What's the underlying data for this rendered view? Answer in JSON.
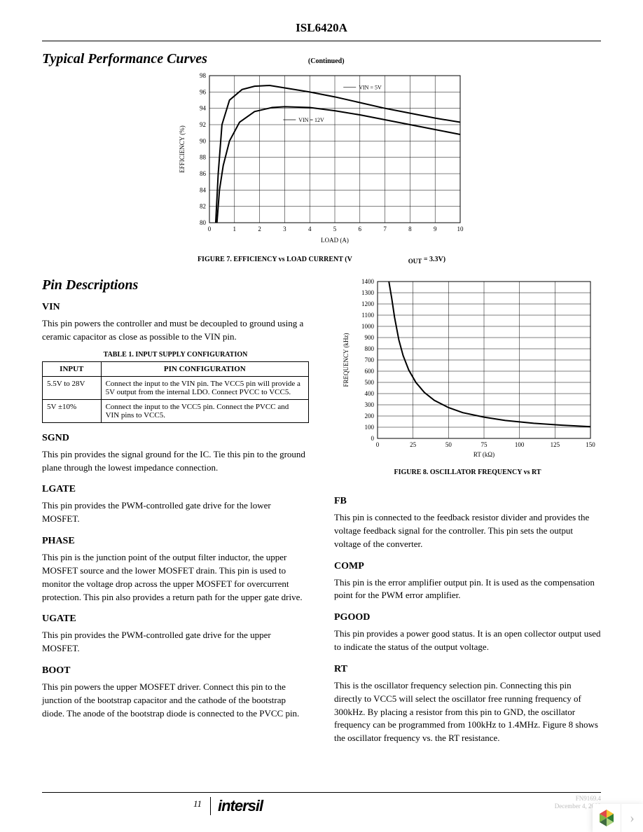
{
  "header": {
    "part": "ISL6420A"
  },
  "section_perf": {
    "title": "Typical Performance Curves",
    "continued": "(Continued)"
  },
  "fig7": {
    "caption_pre": "FIGURE 7. EFFICIENCY vs LOAD CURRENT (V",
    "caption_sub": "OUT",
    "caption_post": " = 3.3V)",
    "type": "line",
    "x_label": "LOAD (A)",
    "y_label": "EFFICIENCY (%)",
    "xlim": [
      0,
      10
    ],
    "ylim": [
      80,
      98
    ],
    "xticks": [
      0,
      1,
      2,
      3,
      4,
      5,
      6,
      7,
      8,
      9,
      10
    ],
    "yticks": [
      80,
      82,
      84,
      86,
      88,
      90,
      92,
      94,
      96,
      98
    ],
    "grid_color": "#000000",
    "background_color": "#ffffff",
    "line_width": 2,
    "series": [
      {
        "name": "VIN = 5V",
        "label": "VIN = 5V",
        "label_xy": [
          5.9,
          96.6
        ],
        "data": [
          [
            0.25,
            80
          ],
          [
            0.35,
            86
          ],
          [
            0.5,
            92
          ],
          [
            0.8,
            95
          ],
          [
            1.3,
            96.3
          ],
          [
            1.8,
            96.7
          ],
          [
            2.4,
            96.8
          ],
          [
            3.0,
            96.5
          ],
          [
            4.0,
            96.0
          ],
          [
            5.0,
            95.4
          ],
          [
            6.0,
            94.7
          ],
          [
            7.0,
            94.0
          ],
          [
            8.0,
            93.4
          ],
          [
            9.0,
            92.8
          ],
          [
            10.0,
            92.3
          ]
        ]
      },
      {
        "name": "VIN = 12V",
        "label": "VIN = 12V",
        "label_xy": [
          3.5,
          92.6
        ],
        "data": [
          [
            0.3,
            80
          ],
          [
            0.4,
            84
          ],
          [
            0.55,
            87
          ],
          [
            0.8,
            90
          ],
          [
            1.2,
            92.3
          ],
          [
            1.8,
            93.6
          ],
          [
            2.5,
            94.1
          ],
          [
            3.0,
            94.2
          ],
          [
            4.0,
            94.1
          ],
          [
            5.0,
            93.7
          ],
          [
            6.0,
            93.2
          ],
          [
            7.0,
            92.6
          ],
          [
            8.0,
            92.0
          ],
          [
            9.0,
            91.4
          ],
          [
            10.0,
            90.8
          ]
        ]
      }
    ]
  },
  "pin_title": "Pin Descriptions",
  "pins_left": [
    {
      "name": "VIN",
      "body": "This pin powers the controller and must be decoupled to ground using a ceramic capacitor as close as possible to the VIN pin."
    },
    {
      "name": "SGND",
      "body": "This pin provides the signal ground for the IC. Tie this pin to the ground plane through the lowest impedance connection."
    },
    {
      "name": "LGATE",
      "body": "This pin provides the PWM-controlled gate drive for the lower MOSFET."
    },
    {
      "name": "PHASE",
      "body": "This pin is the junction point of the output filter inductor, the upper MOSFET source and the lower MOSFET drain. This pin is used to monitor the voltage drop across the upper MOSFET for overcurrent protection. This pin also provides a return path for the upper gate drive."
    },
    {
      "name": "UGATE",
      "body": "This pin provides the PWM-controlled gate drive for the upper MOSFET."
    },
    {
      "name": "BOOT",
      "body": "This pin powers the upper MOSFET driver. Connect this pin to the junction of the bootstrap capacitor and the cathode of the bootstrap diode. The anode of the bootstrap diode is connected to the PVCC pin."
    }
  ],
  "pins_right": [
    {
      "name": "FB",
      "body": "This pin is connected to the feedback resistor divider and provides the voltage feedback signal for the controller. This pin sets the output voltage of the converter."
    },
    {
      "name": "COMP",
      "body": "This pin is the error amplifier output pin. It is used as the compensation point for the PWM error amplifier."
    },
    {
      "name": "PGOOD",
      "body": "This pin provides a power good status. It is an open collector output used to indicate the status of the output voltage."
    },
    {
      "name": "RT",
      "body": "This is the oscillator frequency selection pin. Connecting this pin directly to VCC5 will select the oscillator free running frequency of 300kHz. By placing a resistor from this pin to GND, the oscillator frequency can be programmed from 100kHz to 1.4MHz. Figure 8 shows the oscillator frequency vs. the RT resistance."
    }
  ],
  "table1": {
    "title": "TABLE 1. INPUT SUPPLY CONFIGURATION",
    "columns": [
      "INPUT",
      "PIN CONFIGURATION"
    ],
    "rows": [
      [
        "5.5V to 28V",
        "Connect the input to the VIN pin. The VCC5 pin will provide a 5V output from the internal LDO. Connect PVCC to VCC5."
      ],
      [
        "5V ±10%",
        "Connect the input to the VCC5 pin. Connect the PVCC and VIN pins to VCC5."
      ]
    ]
  },
  "fig8": {
    "caption": "FIGURE 8. OSCILLATOR FREQUENCY vs RT",
    "type": "line",
    "x_label": "RT (kΩ)",
    "y_label": "FREQUENCY (kHz)",
    "xlim": [
      0,
      150
    ],
    "ylim": [
      0,
      1400
    ],
    "xticks": [
      0,
      25,
      50,
      75,
      100,
      125,
      150
    ],
    "yticks": [
      0,
      100,
      200,
      300,
      400,
      500,
      600,
      700,
      800,
      900,
      1000,
      1100,
      1200,
      1300,
      1400
    ],
    "grid_color": "#000000",
    "background_color": "#ffffff",
    "line_width": 2,
    "series": [
      {
        "name": "freq",
        "data": [
          [
            8,
            1400
          ],
          [
            10,
            1250
          ],
          [
            12,
            1080
          ],
          [
            15,
            880
          ],
          [
            18,
            740
          ],
          [
            22,
            610
          ],
          [
            27,
            500
          ],
          [
            33,
            410
          ],
          [
            40,
            340
          ],
          [
            50,
            275
          ],
          [
            60,
            230
          ],
          [
            75,
            190
          ],
          [
            90,
            160
          ],
          [
            110,
            135
          ],
          [
            130,
            118
          ],
          [
            150,
            105
          ]
        ]
      }
    ]
  },
  "footer": {
    "page": "11",
    "brand": "intersil",
    "doc_id": "FN9169.4",
    "doc_date": "December 4, 2009"
  }
}
